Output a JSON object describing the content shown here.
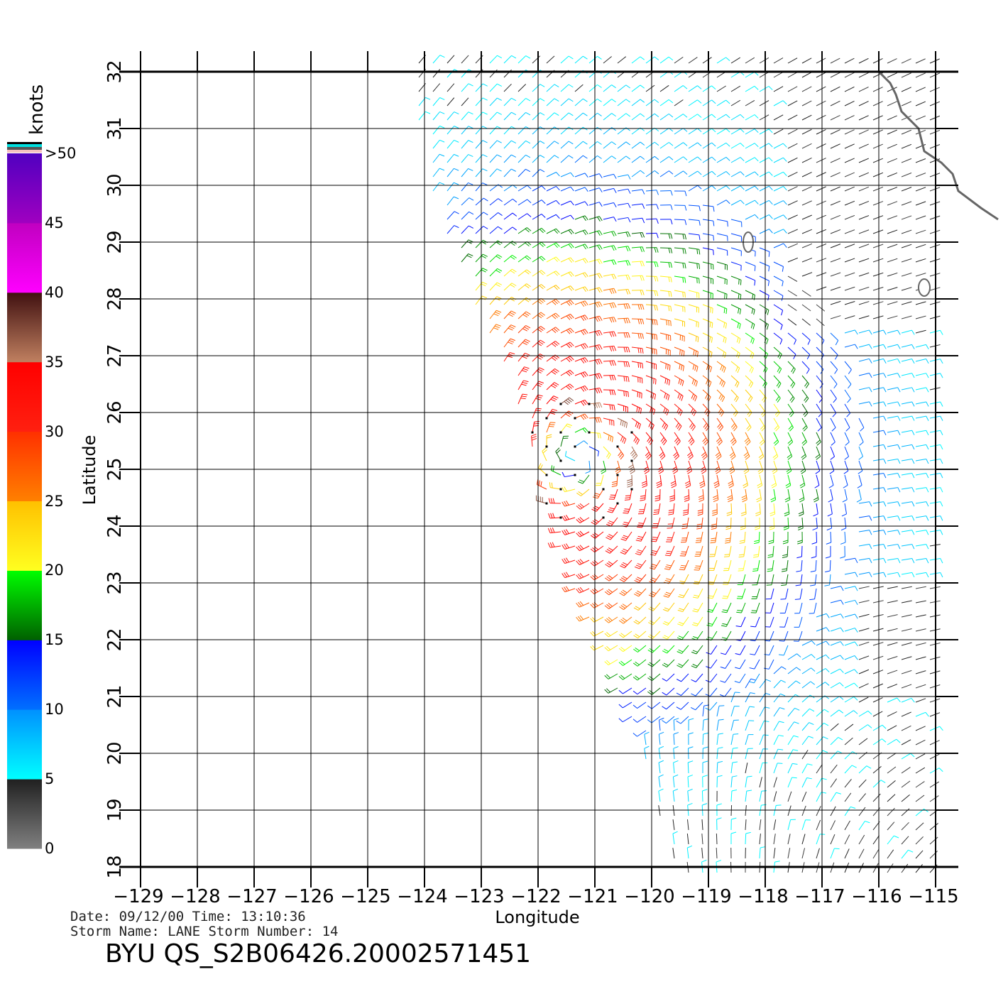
{
  "chart_data": {
    "type": "wind-barb-map",
    "xlabel": "Longitude",
    "ylabel": "Latitude",
    "xlim": [
      -129,
      -115
    ],
    "ylim": [
      18,
      32
    ],
    "x_ticks": [
      "-129",
      "-128",
      "-127",
      "-126",
      "-125",
      "-124",
      "-123",
      "-122",
      "-121",
      "-120",
      "-119",
      "-118",
      "-117",
      "-116",
      "-115"
    ],
    "y_ticks": [
      "18",
      "19",
      "20",
      "21",
      "22",
      "23",
      "24",
      "25",
      "26",
      "27",
      "28",
      "29",
      "30",
      "31",
      "32"
    ],
    "grid": true,
    "colorbar": {
      "unit": "knots",
      "ticks": [
        "0",
        "5",
        "10",
        "15",
        "20",
        "25",
        "30",
        "35",
        "40",
        "45",
        ">50"
      ],
      "bands": [
        {
          "range": [
            0,
            5
          ],
          "colors": [
            "#808080",
            "#202020"
          ]
        },
        {
          "range": [
            5,
            10
          ],
          "colors": [
            "#00ffff",
            "#0090ff"
          ]
        },
        {
          "range": [
            10,
            15
          ],
          "colors": [
            "#0070ff",
            "#0000ff"
          ]
        },
        {
          "range": [
            15,
            20
          ],
          "colors": [
            "#006000",
            "#00ff00"
          ]
        },
        {
          "range": [
            20,
            25
          ],
          "colors": [
            "#ffff20",
            "#ffc000"
          ]
        },
        {
          "range": [
            25,
            30
          ],
          "colors": [
            "#ff8000",
            "#ff3000"
          ]
        },
        {
          "range": [
            30,
            35
          ],
          "colors": [
            "#ff2010",
            "#ff0000"
          ]
        },
        {
          "range": [
            35,
            40
          ],
          "colors": [
            "#c08060",
            "#401010"
          ]
        },
        {
          "range": [
            40,
            45
          ],
          "colors": [
            "#ff00ff",
            "#c000c0"
          ]
        },
        {
          "range": [
            45,
            50
          ],
          "colors": [
            "#a000c0",
            "#5000c0"
          ]
        }
      ]
    }
  },
  "info": {
    "line1": "Date: 09/12/00   Time: 13:10:36",
    "line2": "Storm Name: LANE   Storm Number: 14",
    "title": "BYU QS_S2B06426.20002571451"
  }
}
